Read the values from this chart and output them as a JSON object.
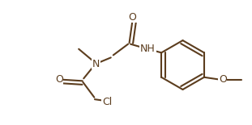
{
  "bg": "#ffffff",
  "bc": "#5c3d1e",
  "lw": 1.5,
  "fs": 9,
  "dpi": 100,
  "figsize": [
    3.11,
    1.55
  ],
  "xlim": [
    0,
    10
  ],
  "ylim": [
    0,
    5
  ]
}
